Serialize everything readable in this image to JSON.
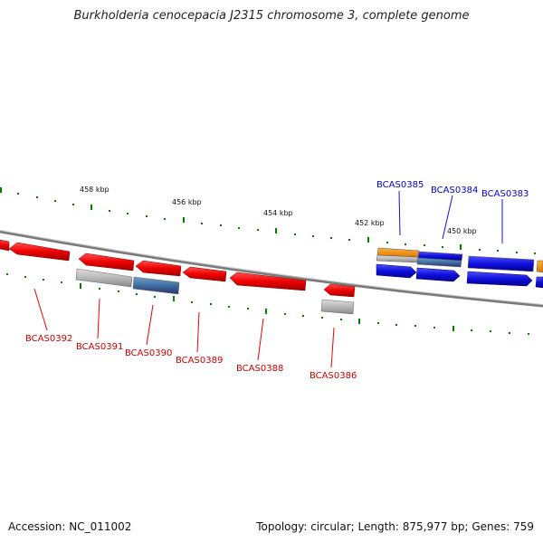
{
  "title": "Burkholderia cenocepacia J2315 chromosome 3, complete genome",
  "footer": {
    "accession": "Accession: NC_011002",
    "topology": "Topology: circular;",
    "length": "Length: 875,977 bp;",
    "genes": "Genes: 759"
  },
  "ticks": [
    "458 kbp",
    "456 kbp",
    "454 kbp",
    "452 kbp",
    "450 kbp"
  ],
  "genes": [
    {
      "id": "BCAS0392",
      "strand": "reverse",
      "color": "#ee0000"
    },
    {
      "id": "BCAS0391",
      "strand": "reverse",
      "color": "#ee0000"
    },
    {
      "id": "BCAS0390",
      "strand": "reverse",
      "color": "#ee0000"
    },
    {
      "id": "BCAS0389",
      "strand": "reverse",
      "color": "#ee0000"
    },
    {
      "id": "BCAS0388",
      "strand": "reverse",
      "color": "#ee0000"
    },
    {
      "id": "BCAS0386",
      "strand": "reverse",
      "color": "#ee0000"
    },
    {
      "id": "BCAS0385",
      "strand": "forward",
      "color": "#1010dd"
    },
    {
      "id": "BCAS0384",
      "strand": "forward",
      "color": "#1010dd"
    },
    {
      "id": "BCAS0383",
      "strand": "forward",
      "color": "#1010dd"
    }
  ],
  "colors": {
    "reverse_gene": "#ee0000",
    "forward_gene": "#1010dd",
    "backbone": "#808080",
    "tick": "#008000",
    "rna_feature": "#ff8c00",
    "secondary_feature": "#aaaaaa"
  }
}
